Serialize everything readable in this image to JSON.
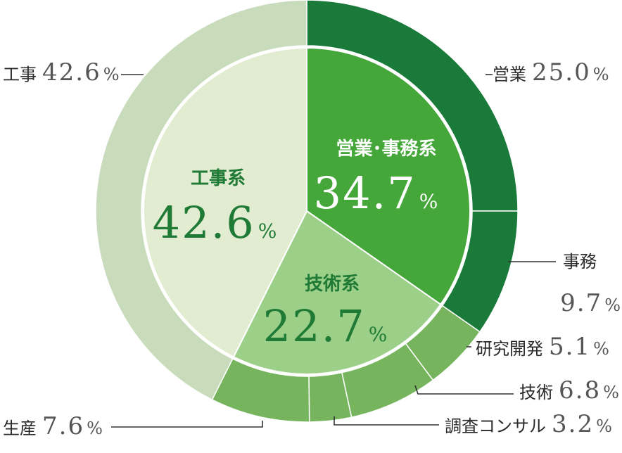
{
  "chart_data": {
    "type": "donut",
    "inner": [
      {
        "name": "営業･事務系",
        "value": 34.7,
        "color": "#45a63a",
        "text_color": "#ffffff"
      },
      {
        "name": "技術系",
        "value": 22.7,
        "color": "#9ccf88",
        "text_color": "#1f7a35"
      },
      {
        "name": "工事系",
        "value": 42.6,
        "color": "#e1ecd1",
        "text_color": "#1f7a35"
      }
    ],
    "outer": [
      {
        "name": "営業",
        "value": 25.0,
        "display": "25.0",
        "color": "#1a7a3a"
      },
      {
        "name": "事務",
        "value": 9.7,
        "display": "9.7",
        "color": "#1a7a3a"
      },
      {
        "name": "研究開発",
        "value": 5.1,
        "display": "5.1",
        "color": "#76b55d"
      },
      {
        "name": "技術",
        "value": 6.8,
        "display": "6.8",
        "color": "#76b55d"
      },
      {
        "name": "調査コンサル",
        "value": 3.2,
        "display": "3.2",
        "color": "#76b55d"
      },
      {
        "name": "生産",
        "value": 7.6,
        "display": "7.6",
        "color": "#76b55d"
      },
      {
        "name": "工事",
        "value": 42.6,
        "display": "42.6",
        "color": "#c8dcbc"
      }
    ],
    "percent_symbol": "%"
  }
}
